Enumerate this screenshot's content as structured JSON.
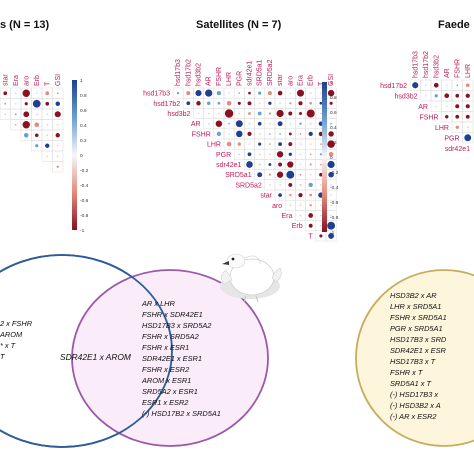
{
  "panels": [
    {
      "title": "s (N = 13)",
      "col_labels": [
        "hsd3b2",
        "SRD5a2",
        "star",
        "Era",
        "aro",
        "Erb",
        "T",
        "GSI"
      ],
      "row_labels": []
    },
    {
      "title": "Satellites (N = 7)",
      "col_labels": [
        "hsd17b3",
        "hsd17b2",
        "hsd3b2",
        "AR",
        "FSHR",
        "LHR",
        "PGR",
        "sdr42e1",
        "SRD5a1",
        "SRD5a2",
        "star",
        "aro",
        "Era",
        "Erb",
        "T",
        "GSI"
      ],
      "row_labels": [
        "hsd17b3",
        "hsd17b2",
        "hsd3b2",
        "AR",
        "FSHR",
        "LHR",
        "PGR",
        "sdr42e1",
        "SRD5a1",
        "SRD5a2",
        "star",
        "aro",
        "Era",
        "Erb",
        "T"
      ]
    },
    {
      "title": "Faede",
      "col_labels": [
        "hsd17b3",
        "hsd17b2",
        "hsd3b2",
        "AR",
        "FSHR",
        "LHR"
      ],
      "row_labels": [
        "hsd17b2",
        "hsd3b2",
        "AR",
        "FSHR",
        "LHR",
        "PGR",
        "sdr42e1"
      ]
    }
  ],
  "colorbar": {
    "ticks": [
      "1",
      "0.8",
      "0.6",
      "0.4",
      "0.2",
      "0",
      "-0.2",
      "-0.4",
      "-0.6",
      "-0.8",
      "-1"
    ],
    "colors": {
      "positive": "#1f4e9a",
      "negative": "#b2182b",
      "mid": "#f7f7f7"
    }
  },
  "venn_left": {
    "left_items": [
      "2 x FSHR",
      "AROM",
      "* x T",
      "T"
    ],
    "overlap_items": [
      "SDR42E1 x AROM"
    ],
    "right_items": [
      "AR x LHR",
      "FSHR x SDR42E1",
      "HSD17B3 x SRD5A2",
      "FSHR x SRD5A2",
      "FSHR x ESR1",
      "SDR42E1 x ESR1",
      "FSHR x ESR2",
      "AROM x ESR1",
      "SRD5A2 x ESR1",
      "ESR1 x ESR2",
      "(-) HSD17B2 x SRD5A1"
    ],
    "colors": {
      "left_stroke": "#2e5c9a",
      "left_fill": "#ffffff",
      "right_stroke": "#9b59a8",
      "right_fill": "#f9e9f7"
    }
  },
  "venn_right": {
    "items": [
      "HSD3B2 x AR",
      "LHR x SRD5A1",
      "FSHR x SRD5A1",
      "PGR x SRD5A1",
      "HSD17B3 x SRD",
      "SDR42E1 x ESR",
      "HSD17B3 x T",
      "FSHR x T",
      "SRD5A1 x T",
      "(-) HSD17B3 x",
      "(-) HSD3B2 x A",
      "(-) AR x ESR2"
    ],
    "colors": {
      "stroke": "#c7ad5b",
      "fill": "#fdf6dc"
    }
  },
  "bird_icon": "white-bird-illustration"
}
